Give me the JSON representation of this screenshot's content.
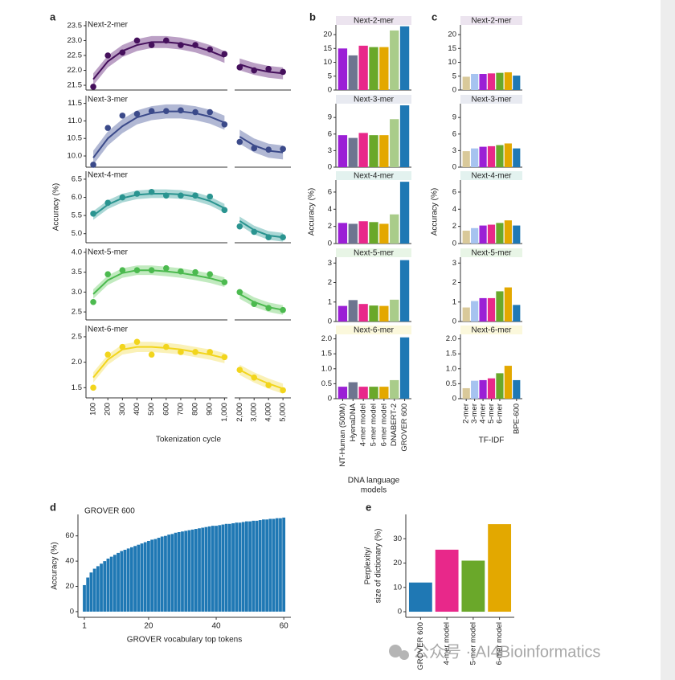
{
  "chart_data": [
    {
      "type": "scatter",
      "panel": "a",
      "title": "Next-2-mer",
      "x": [
        100,
        200,
        300,
        400,
        500,
        600,
        700,
        800,
        900,
        1000,
        2000,
        3000,
        4000,
        5000
      ],
      "xlim": [
        [
          50,
          1020
        ],
        [
          1650,
          5550
        ]
      ],
      "ylim": [
        21.34,
        23.66
      ],
      "yticks": [
        21.5,
        {
          "value": 22,
          "label": "22.0"
        },
        22.5,
        {
          "value": 23,
          "label": "23.0"
        },
        23.5
      ],
      "color": "#45105c",
      "band_color": "#8e609f",
      "values": [
        21.45,
        22.5,
        22.6,
        23.0,
        22.85,
        23.0,
        22.85,
        22.85,
        22.7,
        22.55,
        22.1,
        22.0,
        22.05,
        21.95
      ],
      "fit": [
        21.7,
        22.3,
        22.65,
        22.85,
        22.95,
        22.95,
        22.9,
        22.8,
        22.65,
        22.45,
        22.2,
        22.05,
        21.95,
        21.9
      ],
      "fit_error": 0.2
    },
    {
      "type": "scatter",
      "title": "Next-3-mer",
      "x": [
        100,
        200,
        300,
        400,
        500,
        600,
        700,
        800,
        900,
        1000,
        2000,
        3000,
        4000,
        5000
      ],
      "xlim": [
        [
          50,
          1020
        ],
        [
          1650,
          5550
        ]
      ],
      "ylim": [
        9.68,
        11.72
      ],
      "yticks": [
        {
          "value": 10,
          "label": "10.0"
        },
        10.5,
        {
          "value": 11,
          "label": "11.0"
        },
        11.5
      ],
      "color": "#3b4a8a",
      "band_color": "#7d88b8",
      "values": [
        9.75,
        10.8,
        11.15,
        11.2,
        11.28,
        11.28,
        11.3,
        11.25,
        11.25,
        10.9,
        10.4,
        10.22,
        10.18,
        10.2
      ],
      "fit": [
        9.95,
        10.5,
        10.85,
        11.1,
        11.22,
        11.27,
        11.27,
        11.22,
        11.12,
        10.95,
        10.55,
        10.3,
        10.15,
        10.1
      ],
      "fit_error": 0.2
    },
    {
      "type": "scatter",
      "title": "Next-4-mer",
      "ylabel": "Accuracy (%)",
      "x": [
        100,
        200,
        300,
        400,
        500,
        600,
        700,
        800,
        900,
        1000,
        2000,
        3000,
        4000,
        5000
      ],
      "xlim": [
        [
          50,
          1020
        ],
        [
          1650,
          5550
        ]
      ],
      "ylim": [
        4.75,
        6.72
      ],
      "yticks": [
        {
          "value": 5,
          "label": "5.0"
        },
        5.5,
        {
          "value": 6,
          "label": "6.0"
        },
        6.5
      ],
      "color": "#2a9490",
      "band_color": "#72bdb9",
      "values": [
        5.55,
        5.85,
        6.0,
        6.1,
        6.15,
        6.05,
        6.05,
        6.05,
        6.02,
        5.65,
        5.2,
        5.05,
        4.9,
        4.9
      ],
      "fit": [
        5.5,
        5.8,
        5.98,
        6.07,
        6.1,
        6.1,
        6.08,
        6.02,
        5.9,
        5.7,
        5.35,
        5.1,
        4.95,
        4.9
      ],
      "fit_error": 0.12
    },
    {
      "type": "scatter",
      "title": "Next-5-mer",
      "x": [
        100,
        200,
        300,
        400,
        500,
        600,
        700,
        800,
        900,
        1000,
        2000,
        3000,
        4000,
        5000
      ],
      "xlim": [
        [
          50,
          1020
        ],
        [
          1650,
          5550
        ]
      ],
      "ylim": [
        2.3,
        4.1
      ],
      "yticks": [
        2.5,
        {
          "value": 3,
          "label": "3.0"
        },
        3.5,
        {
          "value": 4,
          "label": "4.0"
        }
      ],
      "color": "#4cba4f",
      "band_color": "#98dc94",
      "values": [
        2.75,
        3.45,
        3.55,
        3.55,
        3.55,
        3.6,
        3.52,
        3.5,
        3.45,
        3.25,
        3.0,
        2.7,
        2.6,
        2.55
      ],
      "fit": [
        2.95,
        3.3,
        3.48,
        3.55,
        3.55,
        3.52,
        3.48,
        3.42,
        3.35,
        3.25,
        2.95,
        2.75,
        2.62,
        2.55
      ],
      "fit_error": 0.12
    },
    {
      "type": "scatter",
      "title": "Next-6-mer",
      "xlabel": "Tokenization cycle",
      "x": [
        100,
        200,
        300,
        400,
        500,
        600,
        700,
        800,
        900,
        1000,
        2000,
        3000,
        4000,
        5000
      ],
      "xlim": [
        [
          50,
          1020
        ],
        [
          1650,
          5550
        ]
      ],
      "ylim": [
        1.3,
        2.72
      ],
      "yticks": [
        1.5,
        {
          "value": 2,
          "label": "2.0"
        },
        2.5
      ],
      "xticks": [
        100,
        200,
        300,
        400,
        500,
        600,
        700,
        800,
        900,
        {
          "value": 1000,
          "label": "1,000"
        },
        {
          "value": 2000,
          "label": "2,000"
        },
        {
          "value": 3000,
          "label": "3,000"
        },
        {
          "value": 4000,
          "label": "4,000"
        },
        {
          "value": 5000,
          "label": "5,000"
        }
      ],
      "color": "#f2d51c",
      "band_color": "#f7e887",
      "values": [
        1.5,
        2.15,
        2.3,
        2.4,
        2.15,
        2.3,
        2.2,
        2.2,
        2.2,
        2.1,
        1.85,
        1.7,
        1.55,
        1.45
      ],
      "fit": [
        1.7,
        2.05,
        2.25,
        2.3,
        2.3,
        2.28,
        2.25,
        2.2,
        2.15,
        2.08,
        1.85,
        1.7,
        1.58,
        1.48
      ],
      "fit_error": 0.1
    },
    {
      "type": "bar",
      "panel": "b",
      "title": "Next-2-mer",
      "title_bg": "#ece4ef",
      "colors": [
        "#9b1fd6",
        "#6e7590",
        "#e8288a",
        "#6aa82a",
        "#e3a800",
        "#a9cc8a",
        "#1f78b4"
      ],
      "values": [
        15,
        12.5,
        16,
        15.5,
        15.5,
        21.5,
        23
      ],
      "ylim": [
        0,
        23.5
      ],
      "yticks": [
        0,
        5,
        10,
        15,
        20
      ]
    },
    {
      "type": "bar",
      "title": "Next-3-mer",
      "title_bg": "#e8eaf1",
      "colors": [
        "#9b1fd6",
        "#6e7590",
        "#e8288a",
        "#6aa82a",
        "#e3a800",
        "#a9cc8a",
        "#1f78b4"
      ],
      "values": [
        5.8,
        5.3,
        6.2,
        5.8,
        5.8,
        8.7,
        11.2
      ],
      "ylim": [
        0,
        11.5
      ],
      "yticks": [
        0,
        3,
        6,
        9
      ]
    },
    {
      "type": "bar",
      "title": "Next-4-mer",
      "title_bg": "#e3f2ef",
      "ylabel": "Accuracy (%)",
      "colors": [
        "#9b1fd6",
        "#6e7590",
        "#e8288a",
        "#6aa82a",
        "#e3a800",
        "#a9cc8a",
        "#1f78b4"
      ],
      "values": [
        2.4,
        2.3,
        2.6,
        2.5,
        2.3,
        3.4,
        7.2
      ],
      "ylim": [
        0,
        7.4
      ],
      "yticks": [
        0,
        2,
        4,
        6
      ]
    },
    {
      "type": "bar",
      "title": "Next-5-mer",
      "title_bg": "#e8f5e6",
      "colors": [
        "#9b1fd6",
        "#6e7590",
        "#e8288a",
        "#6aa82a",
        "#e3a800",
        "#a9cc8a",
        "#1f78b4"
      ],
      "values": [
        0.8,
        1.1,
        0.9,
        0.82,
        0.8,
        1.12,
        3.15
      ],
      "ylim": [
        0,
        3.3
      ],
      "yticks": [
        0,
        1,
        2,
        3
      ]
    },
    {
      "type": "bar",
      "title": "Next-6-mer",
      "title_bg": "#fbf8dc",
      "xlabel": [
        "DNA language",
        "models"
      ],
      "categories": [
        "NT-Human (500M)",
        "HyenaDNA",
        "4-mer model",
        "5-mer model",
        "6-mer model",
        "DNABERT-2",
        "GROVER 600"
      ],
      "colors": [
        "#9b1fd6",
        "#6e7590",
        "#e8288a",
        "#6aa82a",
        "#e3a800",
        "#a9cc8a",
        "#1f78b4"
      ],
      "values": [
        0.4,
        0.55,
        0.4,
        0.4,
        0.4,
        0.62,
        2.05
      ],
      "ylim": [
        0,
        2.15
      ],
      "yticks": [
        0,
        0.5,
        {
          "value": 1,
          "label": "1.0"
        },
        1.5,
        {
          "value": 2,
          "label": "2.0"
        }
      ]
    },
    {
      "type": "bar",
      "panel": "c",
      "title": "Next-2-mer",
      "title_bg": "#ece4ef",
      "colors": [
        "#d9c99a",
        "#a6c3f0",
        "#9b1fd6",
        "#e8288a",
        "#6aa82a",
        "#e3a800",
        "#1f78b4"
      ],
      "values": [
        4.8,
        5.8,
        5.8,
        6.0,
        6.2,
        6.4,
        5.2
      ],
      "ylim": [
        0,
        23.5
      ],
      "yticks": [
        0,
        5,
        10,
        15,
        20
      ]
    },
    {
      "type": "bar",
      "title": "Next-3-mer",
      "title_bg": "#e8eaf1",
      "colors": [
        "#d9c99a",
        "#a6c3f0",
        "#9b1fd6",
        "#e8288a",
        "#6aa82a",
        "#e3a800",
        "#1f78b4"
      ],
      "values": [
        2.9,
        3.4,
        3.7,
        3.8,
        4.0,
        4.3,
        3.4
      ],
      "ylim": [
        0,
        11.5
      ],
      "yticks": [
        0,
        3,
        6,
        9
      ]
    },
    {
      "type": "bar",
      "title": "Next-4-mer",
      "title_bg": "#e3f2ef",
      "ylabel": "Accuracy (%)",
      "colors": [
        "#d9c99a",
        "#a6c3f0",
        "#9b1fd6",
        "#e8288a",
        "#6aa82a",
        "#e3a800",
        "#1f78b4"
      ],
      "values": [
        1.5,
        1.8,
        2.1,
        2.2,
        2.4,
        2.7,
        2.1
      ],
      "ylim": [
        0,
        7.4
      ],
      "yticks": [
        0,
        2,
        4,
        6
      ]
    },
    {
      "type": "bar",
      "title": "Next-5-mer",
      "title_bg": "#e8f5e6",
      "colors": [
        "#d9c99a",
        "#a6c3f0",
        "#9b1fd6",
        "#e8288a",
        "#6aa82a",
        "#e3a800",
        "#1f78b4"
      ],
      "values": [
        0.72,
        1.05,
        1.2,
        1.2,
        1.55,
        1.75,
        0.85
      ],
      "ylim": [
        0,
        3.3
      ],
      "yticks": [
        0,
        1,
        2,
        3
      ]
    },
    {
      "type": "bar",
      "title": "Next-6-mer",
      "title_bg": "#fbf8dc",
      "xlabel": "TF-IDF",
      "categories": [
        "2-mer",
        "3-mer",
        "4-mer",
        "5-mer",
        "6-mer",
        null,
        "BPE-600"
      ],
      "colors": [
        "#d9c99a",
        "#a6c3f0",
        "#9b1fd6",
        "#e8288a",
        "#6aa82a",
        "#e3a800",
        "#1f78b4"
      ],
      "values": [
        0.35,
        0.6,
        0.62,
        0.68,
        0.85,
        1.1,
        0.62
      ],
      "ylim": [
        0,
        2.15
      ],
      "yticks": [
        0,
        0.5,
        {
          "value": 1,
          "label": "1.0"
        },
        1.5,
        {
          "value": 2,
          "label": "2.0"
        }
      ]
    },
    {
      "type": "bar",
      "panel": "d",
      "title": "GROVER 600",
      "ylabel": "Accuracy (%)",
      "xlabel": "GROVER vocabulary top tokens",
      "color": "#1f78b4",
      "x": [
        1,
        2,
        3,
        4,
        5,
        6,
        7,
        8,
        9,
        10,
        11,
        12,
        13,
        14,
        15,
        16,
        17,
        18,
        19,
        20,
        21,
        22,
        23,
        24,
        25,
        26,
        27,
        28,
        29,
        30,
        31,
        32,
        33,
        34,
        35,
        36,
        37,
        38,
        39,
        40,
        41,
        42,
        43,
        44,
        45,
        46,
        47,
        48,
        49,
        50,
        51,
        52,
        53,
        54,
        55,
        56,
        57,
        58,
        59,
        60
      ],
      "values": [
        21,
        27,
        31,
        34,
        36,
        38,
        40,
        42,
        43.5,
        45,
        46.5,
        48,
        49,
        50,
        51,
        52,
        53,
        54,
        55,
        56,
        57,
        57.5,
        58.5,
        59.5,
        60,
        61,
        61.5,
        62.5,
        63,
        63.5,
        64,
        64.5,
        65,
        65.5,
        66,
        66.5,
        67,
        67.5,
        68,
        68,
        68.5,
        69,
        69.5,
        69.5,
        70,
        70.5,
        70.5,
        71,
        71.5,
        71.5,
        72,
        72,
        72.5,
        73,
        73,
        73.5,
        73.5,
        74,
        74,
        74.5
      ],
      "xlim": [
        -0.9,
        62.1
      ],
      "xticks": [
        1,
        20,
        40,
        60
      ],
      "ylim": [
        -4.5,
        77
      ],
      "yticks": [
        0,
        20,
        40,
        60
      ]
    },
    {
      "type": "bar",
      "panel": "e",
      "ylabel": [
        "Perplexity/",
        "size of dictionary (%)"
      ],
      "categories": [
        "GROVER 600",
        "4-mer model",
        "5-mer model",
        "6-mer model"
      ],
      "colors": [
        "#1f78b4",
        "#e8288a",
        "#6aa82a",
        "#e3a800"
      ],
      "values": [
        12,
        25.5,
        21,
        36
      ],
      "ylim": [
        -2.3,
        40
      ],
      "yticks": [
        0,
        10,
        20,
        30
      ]
    }
  ],
  "watermark": "公众号 · AI4Bioinformatics"
}
